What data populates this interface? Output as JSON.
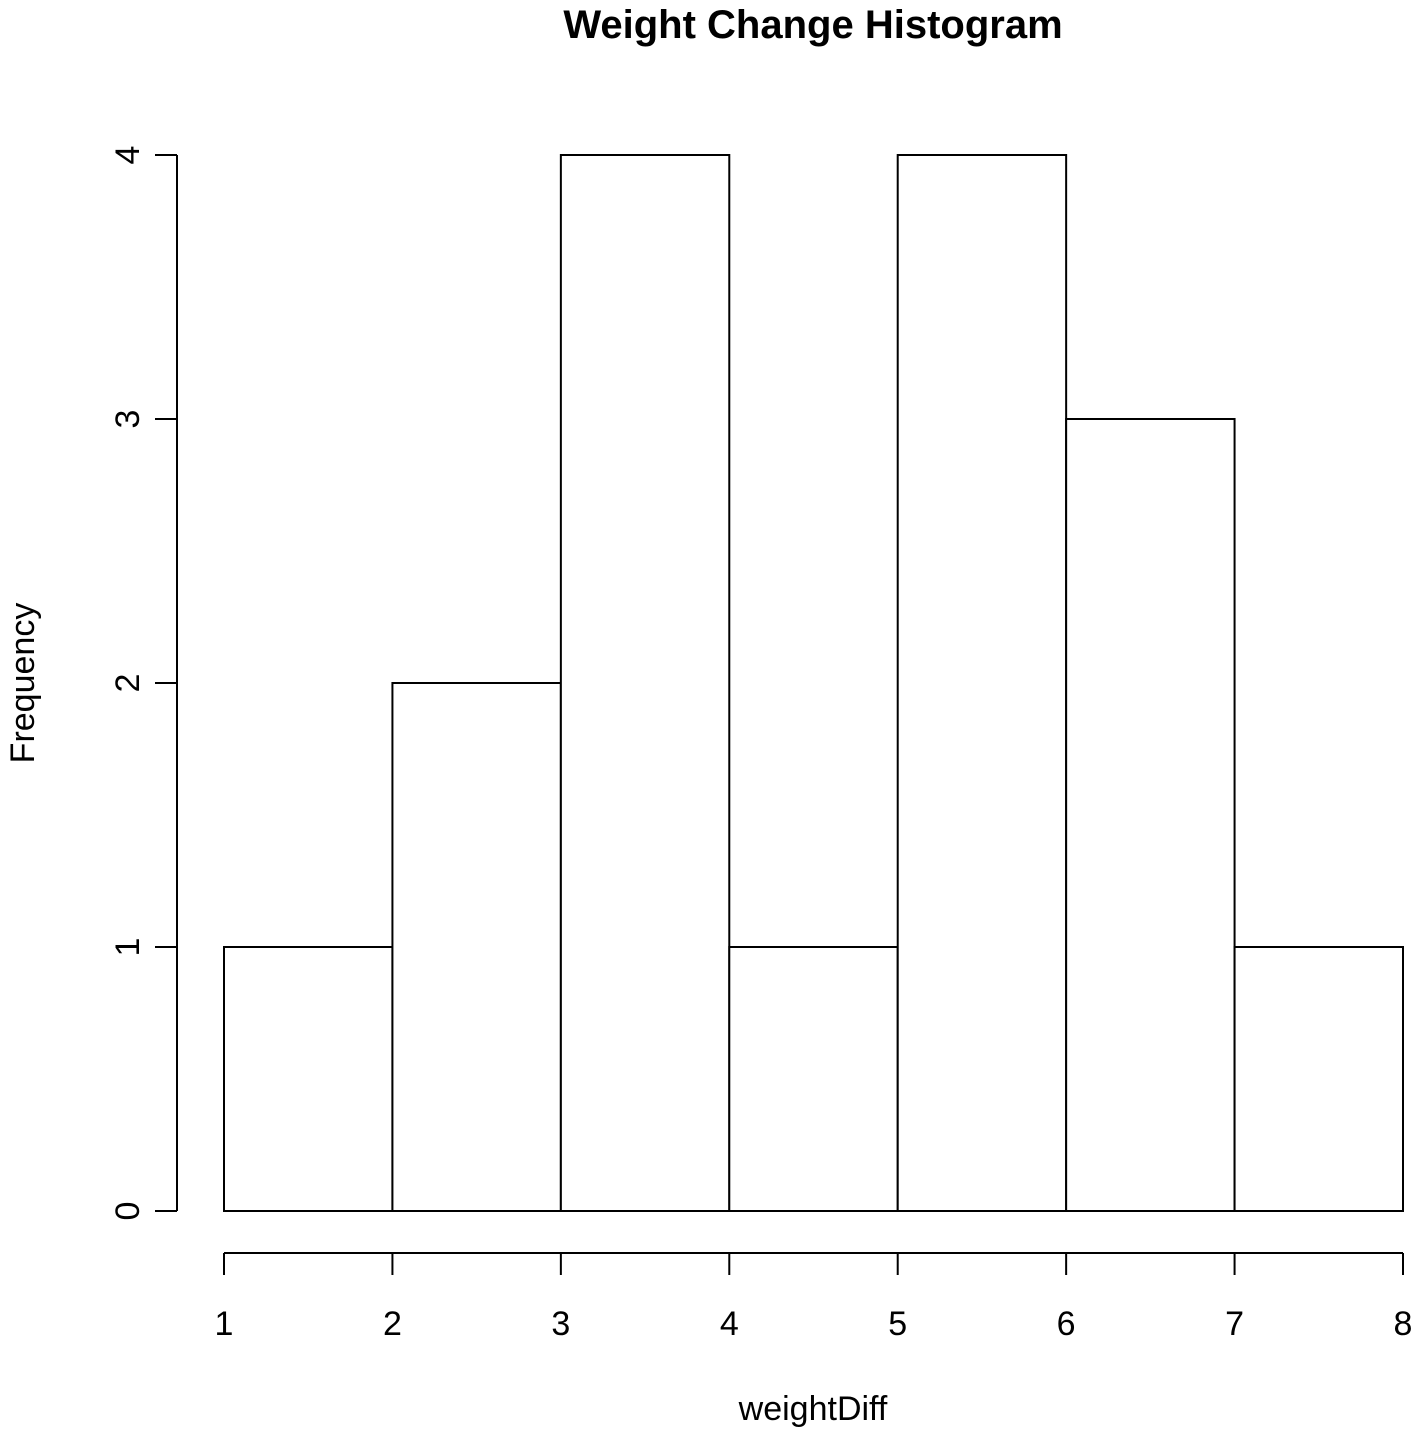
{
  "chart_data": {
    "type": "bar",
    "title": "Weight Change Histogram",
    "xlabel": "weightDiff",
    "ylabel": "Frequency",
    "bin_edges": [
      1,
      2,
      3,
      4,
      5,
      6,
      7,
      8
    ],
    "values": [
      1,
      2,
      4,
      1,
      4,
      3,
      1
    ],
    "xlim": [
      1,
      8
    ],
    "ylim": [
      0,
      4
    ],
    "x_ticks": [
      1,
      2,
      3,
      4,
      5,
      6,
      7,
      8
    ],
    "y_ticks": [
      0,
      1,
      2,
      3,
      4
    ],
    "x_tick_labels": [
      "1",
      "2",
      "3",
      "4",
      "5",
      "6",
      "7",
      "8"
    ],
    "y_tick_labels": [
      "0",
      "1",
      "2",
      "3",
      "4"
    ],
    "grid": false,
    "legend": "none",
    "colors": {
      "bar_fill": "#ffffff",
      "bar_stroke": "#000000",
      "axis": "#000000",
      "background": "#ffffff"
    }
  }
}
